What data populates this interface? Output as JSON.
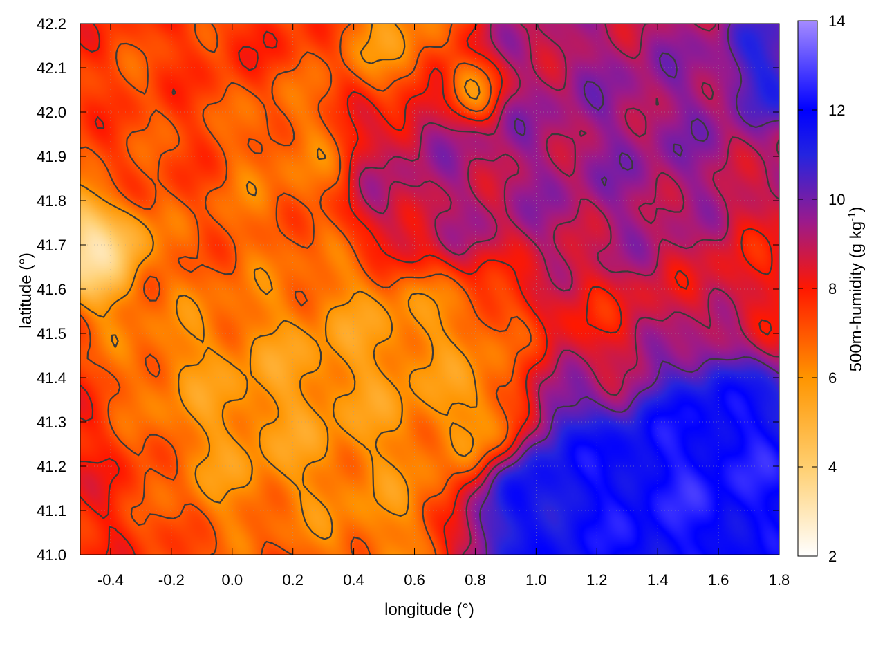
{
  "chart_data": {
    "type": "heatmap",
    "title": "",
    "xlabel": "longitude (°)",
    "ylabel": "latitude (°)",
    "colorbar": {
      "label_main": "500m-humidity (g kg",
      "label_sup": "-1",
      "label_end": ")",
      "range": [
        2,
        14
      ],
      "ticks": [
        "2",
        "4",
        "6",
        "8",
        "10",
        "12",
        "14"
      ],
      "palette": [
        {
          "v": 2,
          "c": "#ffffff"
        },
        {
          "v": 4,
          "c": "#ffcf70"
        },
        {
          "v": 6,
          "c": "#ff9500"
        },
        {
          "v": 8,
          "c": "#ff1800"
        },
        {
          "v": 9.5,
          "c": "#9b1a8c"
        },
        {
          "v": 11,
          "c": "#2424e0"
        },
        {
          "v": 12,
          "c": "#0000ff"
        },
        {
          "v": 14,
          "c": "#a58bff"
        }
      ]
    },
    "xlim": [
      -0.5,
      1.8
    ],
    "ylim": [
      41.0,
      42.2
    ],
    "x_ticks": [
      "-0.4",
      "-0.2",
      "0.0",
      "0.2",
      "0.4",
      "0.6",
      "0.8",
      "1.0",
      "1.2",
      "1.4",
      "1.6",
      "1.8"
    ],
    "y_ticks": [
      "41.0",
      "41.1",
      "41.2",
      "41.3",
      "41.4",
      "41.5",
      "41.6",
      "41.7",
      "41.8",
      "41.9",
      "42.0",
      "42.1",
      "42.2"
    ],
    "grid": true,
    "contour_color": "#3a3a3a",
    "field_features": [
      {
        "lon": -0.45,
        "lat": 41.7,
        "value": 3.0,
        "radius": 0.12
      },
      {
        "lon": -0.1,
        "lat": 41.32,
        "value": 5.8,
        "radius": 0.25
      },
      {
        "lon": 0.15,
        "lat": 41.35,
        "value": 5.5,
        "radius": 0.22
      },
      {
        "lon": 0.45,
        "lat": 41.45,
        "value": 5.6,
        "radius": 0.22
      },
      {
        "lon": 0.7,
        "lat": 41.4,
        "value": 5.8,
        "radius": 0.22
      },
      {
        "lon": 0.85,
        "lat": 41.3,
        "value": 4.8,
        "radius": 0.1
      },
      {
        "lon": 0.5,
        "lat": 41.12,
        "value": 6.0,
        "radius": 0.2
      },
      {
        "lon": 0.8,
        "lat": 42.05,
        "value": 4.5,
        "radius": 0.08
      },
      {
        "lon": 0.55,
        "lat": 42.15,
        "value": 5.8,
        "radius": 0.14
      },
      {
        "lon": 0.2,
        "lat": 41.9,
        "value": 6.3,
        "radius": 0.15
      },
      {
        "lon": 0.65,
        "lat": 41.85,
        "value": 9.3,
        "radius": 0.22
      },
      {
        "lon": 1.0,
        "lat": 41.95,
        "value": 9.5,
        "radius": 0.28
      },
      {
        "lon": 1.4,
        "lat": 41.95,
        "value": 9.8,
        "radius": 0.32
      },
      {
        "lon": 1.75,
        "lat": 42.1,
        "value": 11.5,
        "radius": 0.12
      },
      {
        "lon": 1.7,
        "lat": 41.6,
        "value": 8.2,
        "radius": 0.2
      },
      {
        "lon": 1.45,
        "lat": 41.15,
        "value": 12.8,
        "radius": 0.35
      },
      {
        "lon": 1.2,
        "lat": 41.1,
        "value": 12.0,
        "radius": 0.3
      },
      {
        "lon": 1.65,
        "lat": 41.2,
        "value": 12.5,
        "radius": 0.22
      },
      {
        "lon": 1.0,
        "lat": 41.05,
        "value": 11.5,
        "radius": 0.16
      },
      {
        "lon": 1.25,
        "lat": 41.45,
        "value": 7.5,
        "radius": 0.18
      },
      {
        "lon": -0.4,
        "lat": 41.2,
        "value": 8.0,
        "radius": 0.18
      },
      {
        "lon": 0.05,
        "lat": 41.7,
        "value": 6.7,
        "radius": 0.2
      },
      {
        "lon": -0.3,
        "lat": 41.95,
        "value": 7.2,
        "radius": 0.2
      }
    ]
  }
}
